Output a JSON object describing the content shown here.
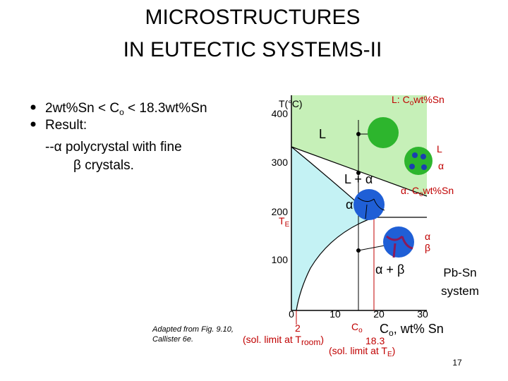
{
  "title": {
    "line1": "MICROSTRUCTURES",
    "line2": "IN EUTECTIC SYSTEMS-II"
  },
  "bullets": [
    {
      "parts": [
        "2wt%Sn < C",
        "o",
        " < 18.3wt%Sn"
      ]
    },
    {
      "parts": [
        "Result:"
      ]
    }
  ],
  "result_lines": [
    "--α polycrystal with fine",
    "β crystals."
  ],
  "diagram": {
    "y_axis_label": "T(°C)",
    "y_ticks": [
      "400",
      "300",
      "200",
      "100"
    ],
    "x_ticks": [
      "0",
      "10",
      "20",
      "30"
    ],
    "eutectic_temp": {
      "symbol": "T",
      "sub": "E"
    },
    "liquid_comp": [
      "L: C",
      "o",
      "wt%Sn"
    ],
    "region_L": "L",
    "region_L_alpha": [
      "L",
      "+",
      "α"
    ],
    "region_alpha": "α",
    "region_alpha_beta": [
      "α",
      "+",
      "β"
    ],
    "micro_L": [
      "L",
      "α"
    ],
    "alpha_comp": [
      "α: C",
      "o",
      "wt%Sn"
    ],
    "micro_ab": [
      "α",
      "β"
    ],
    "x_axis_label": [
      "C",
      "o",
      ", wt% Sn"
    ],
    "co_marker": [
      "C",
      "o"
    ],
    "sol_limit_room": {
      "value": "2",
      "text": "(sol. limit at T",
      "sub": "room",
      "close": ")"
    },
    "sol_limit_e": {
      "value": "18.3",
      "text": "(sol. limit at T",
      "sub": "E",
      "close": ")"
    },
    "system": [
      "Pb-Sn",
      "system"
    ]
  },
  "caption": [
    "Adapted from Fig. 9.10,",
    "Callister 6e."
  ],
  "page_number": "17"
}
